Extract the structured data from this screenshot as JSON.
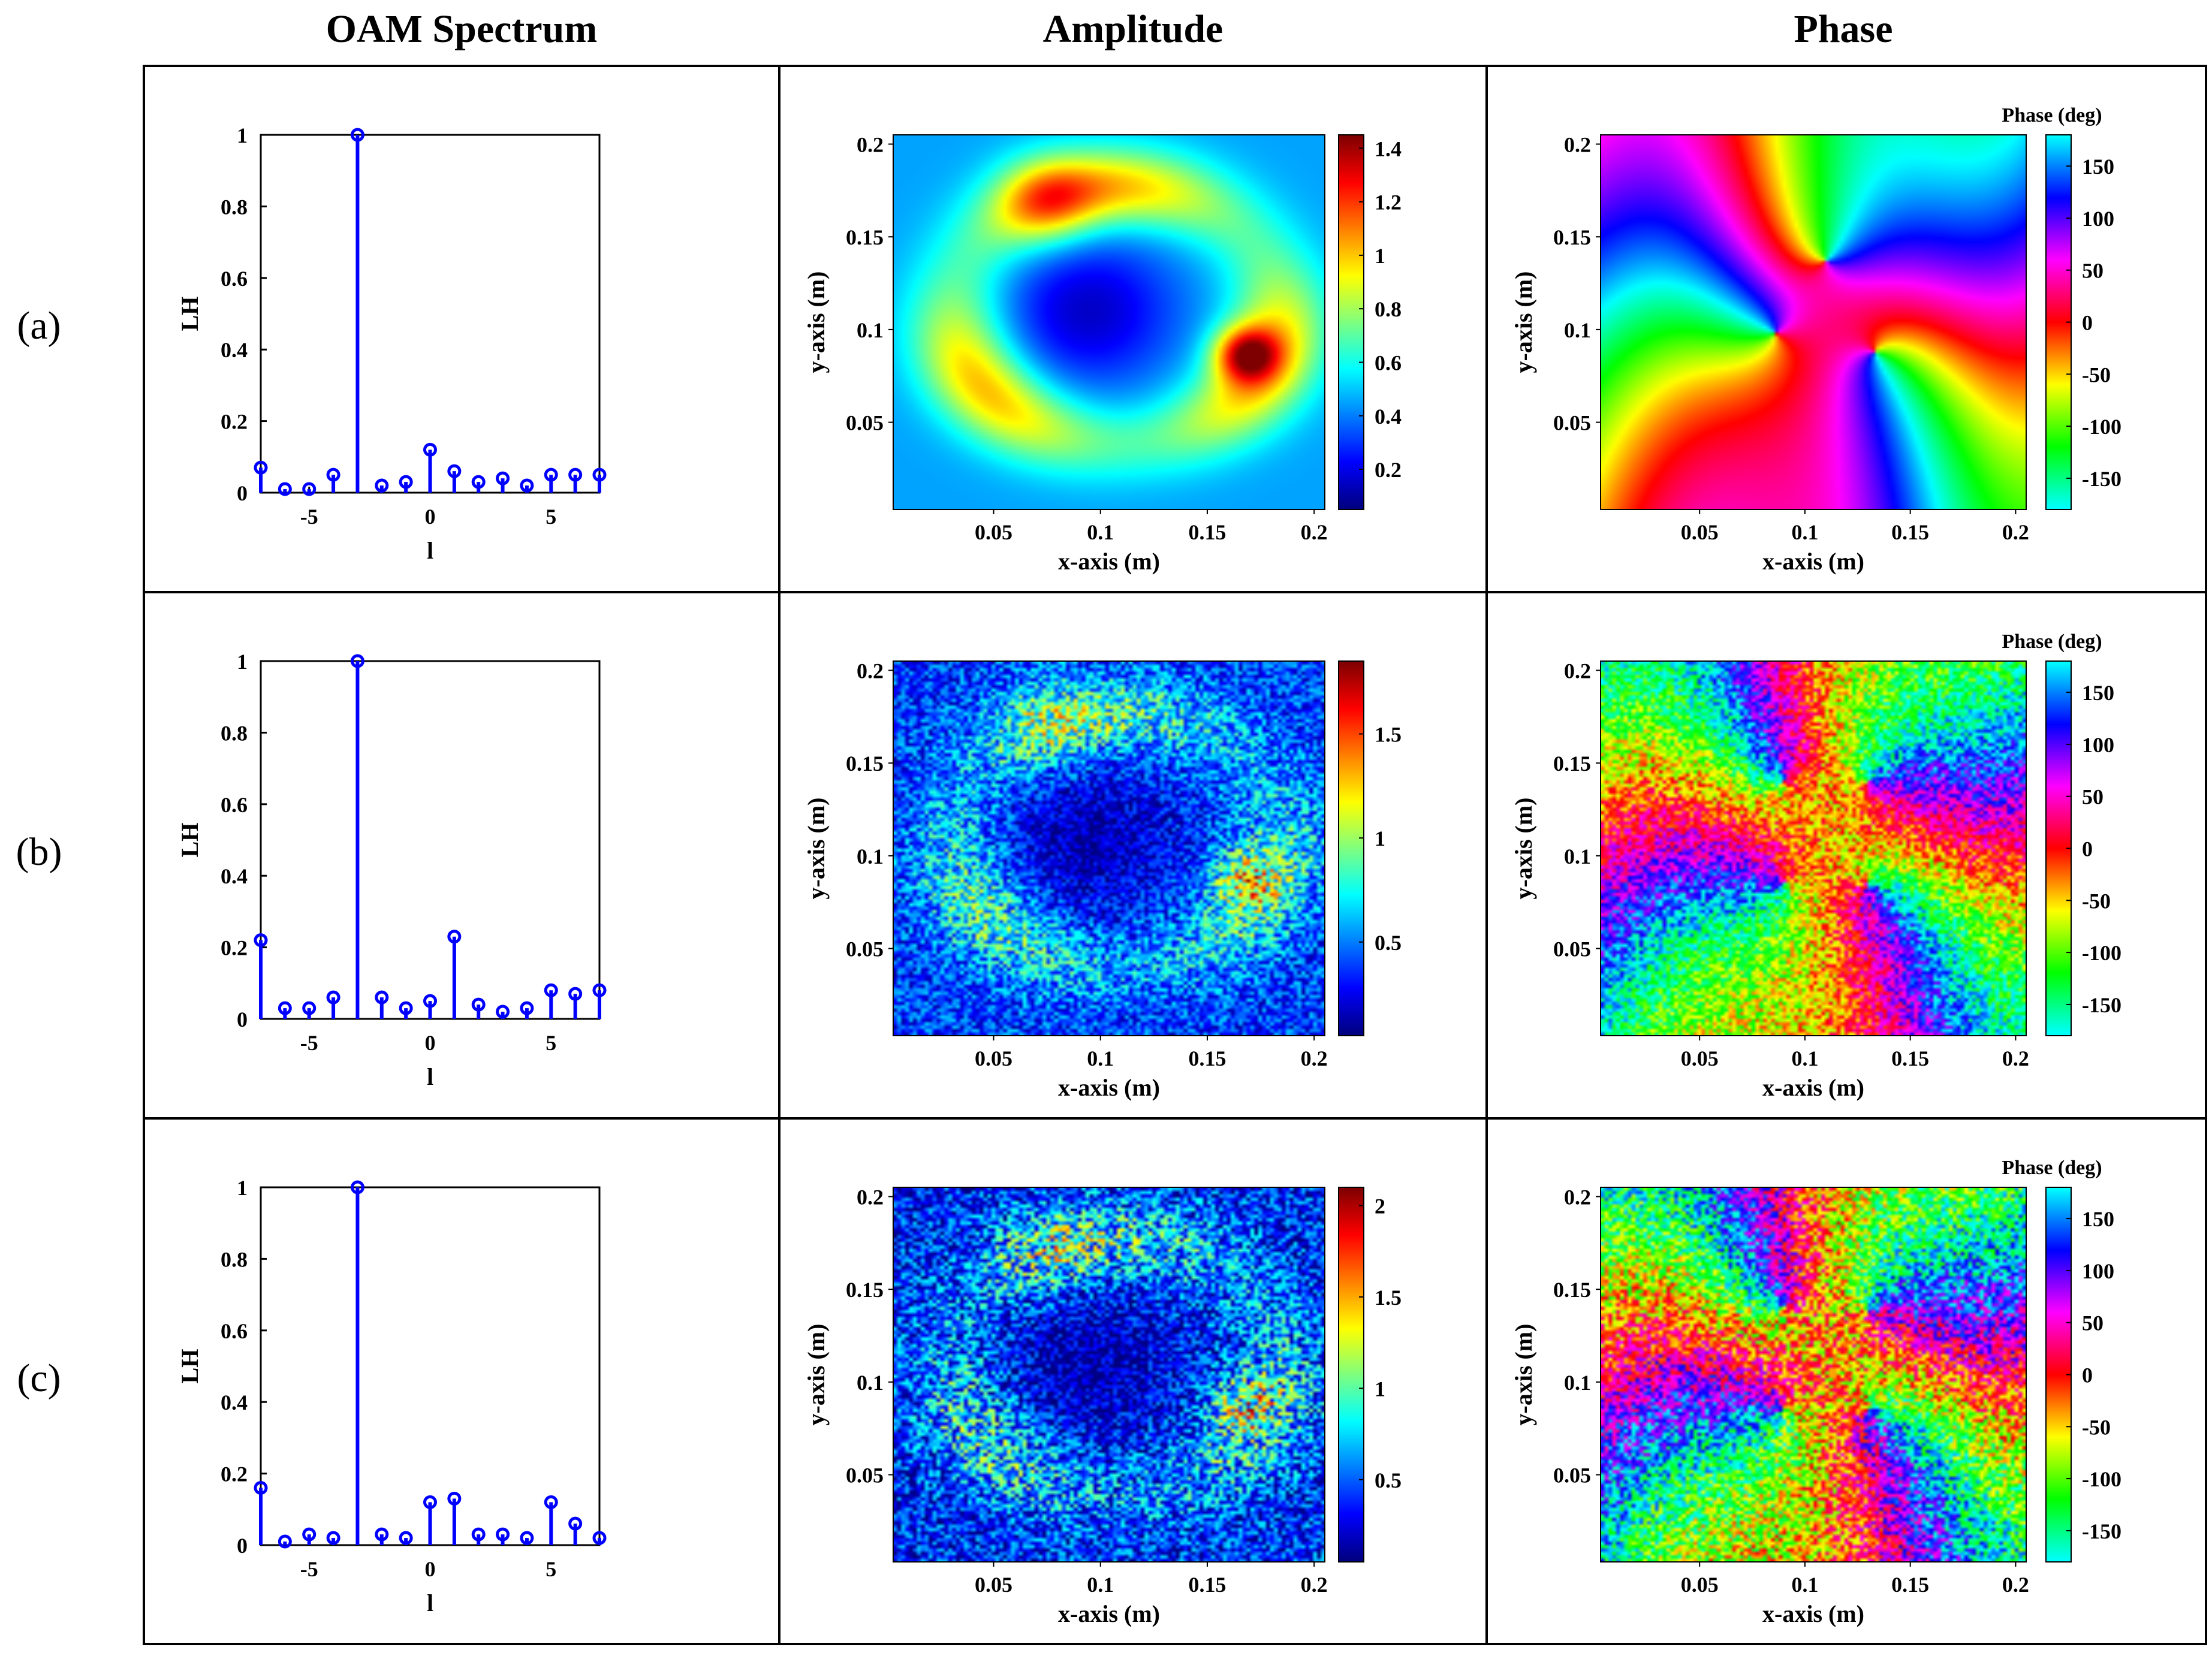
{
  "headers": {
    "spectrum": "OAM Spectrum",
    "amplitude": "Amplitude",
    "phase": "Phase"
  },
  "colors": {
    "stem": "#0000ff",
    "frame": "#000000"
  },
  "chart_data": [
    {
      "panel": "(a)",
      "spectrum": {
        "type": "stem",
        "x": [
          -7,
          -6,
          -5,
          -4,
          -3,
          -2,
          -1,
          0,
          1,
          2,
          3,
          4,
          5,
          6,
          7
        ],
        "values": [
          0.07,
          0.01,
          0.01,
          0.05,
          1.0,
          0.02,
          0.03,
          0.12,
          0.06,
          0.03,
          0.04,
          0.02,
          0.05,
          0.05,
          0.05
        ],
        "xlabel": "l",
        "ylabel": "LH",
        "xlim": [
          -7,
          7
        ],
        "ylim": [
          0,
          1
        ],
        "xticks": [
          "-5",
          "0",
          "5"
        ],
        "yticks": [
          "0",
          "0.2",
          "0.4",
          "0.6",
          "0.8",
          "1"
        ]
      },
      "amplitude": {
        "type": "heatmap",
        "xlabel": "x-axis (m)",
        "ylabel": "y-axis (m)",
        "xticks": [
          "0.05",
          "0.1",
          "0.15",
          "0.2"
        ],
        "yticks": [
          "0.05",
          "0.1",
          "0.15",
          "0.2"
        ],
        "colorbar_ticks": [
          "0.2",
          "0.4",
          "0.6",
          "0.8",
          "1",
          "1.2",
          "1.4"
        ],
        "colorbar_range": [
          0.05,
          1.45
        ],
        "noise": 0.0
      },
      "phase": {
        "type": "heatmap",
        "xlabel": "x-axis (m)",
        "ylabel": "y-axis (m)",
        "colorbar_title": "Phase (deg)",
        "xticks": [
          "0.05",
          "0.1",
          "0.15",
          "0.2"
        ],
        "yticks": [
          "0.05",
          "0.1",
          "0.15",
          "0.2"
        ],
        "colorbar_ticks": [
          "150",
          "100",
          "50",
          "0",
          "-50",
          "-100",
          "-150"
        ],
        "colorbar_range": [
          -180,
          180
        ],
        "noise": 0.0
      }
    },
    {
      "panel": "(b)",
      "spectrum": {
        "type": "stem",
        "x": [
          -7,
          -6,
          -5,
          -4,
          -3,
          -2,
          -1,
          0,
          1,
          2,
          3,
          4,
          5,
          6,
          7
        ],
        "values": [
          0.22,
          0.03,
          0.03,
          0.06,
          1.0,
          0.06,
          0.03,
          0.05,
          0.23,
          0.04,
          0.02,
          0.03,
          0.08,
          0.07,
          0.08
        ],
        "xlabel": "l",
        "ylabel": "LH",
        "xlim": [
          -7,
          7
        ],
        "ylim": [
          0,
          1
        ],
        "xticks": [
          "-5",
          "0",
          "5"
        ],
        "yticks": [
          "0",
          "0.2",
          "0.4",
          "0.6",
          "0.8",
          "1"
        ]
      },
      "amplitude": {
        "type": "heatmap",
        "xlabel": "x-axis (m)",
        "ylabel": "y-axis (m)",
        "xticks": [
          "0.05",
          "0.1",
          "0.15",
          "0.2"
        ],
        "yticks": [
          "0.05",
          "0.1",
          "0.15",
          "0.2"
        ],
        "colorbar_ticks": [
          "0.5",
          "1",
          "1.5"
        ],
        "colorbar_range": [
          0.05,
          1.85
        ],
        "noise": 0.35
      },
      "phase": {
        "type": "heatmap",
        "xlabel": "x-axis (m)",
        "ylabel": "y-axis (m)",
        "colorbar_title": "Phase (deg)",
        "xticks": [
          "0.05",
          "0.1",
          "0.15",
          "0.2"
        ],
        "yticks": [
          "0.05",
          "0.1",
          "0.15",
          "0.2"
        ],
        "colorbar_ticks": [
          "150",
          "100",
          "50",
          "0",
          "-50",
          "-100",
          "-150"
        ],
        "colorbar_range": [
          -180,
          180
        ],
        "noise": 0.6
      }
    },
    {
      "panel": "(c)",
      "spectrum": {
        "type": "stem",
        "x": [
          -7,
          -6,
          -5,
          -4,
          -3,
          -2,
          -1,
          0,
          1,
          2,
          3,
          4,
          5,
          6,
          7
        ],
        "values": [
          0.16,
          0.01,
          0.03,
          0.02,
          1.0,
          0.03,
          0.02,
          0.12,
          0.13,
          0.03,
          0.03,
          0.02,
          0.12,
          0.06,
          0.02
        ],
        "xlabel": "l",
        "ylabel": "LH",
        "xlim": [
          -7,
          7
        ],
        "ylim": [
          0,
          1
        ],
        "xticks": [
          "-5",
          "0",
          "5"
        ],
        "yticks": [
          "0",
          "0.2",
          "0.4",
          "0.6",
          "0.8",
          "1"
        ]
      },
      "amplitude": {
        "type": "heatmap",
        "xlabel": "x-axis (m)",
        "ylabel": "y-axis (m)",
        "xticks": [
          "0.05",
          "0.1",
          "0.15",
          "0.2"
        ],
        "yticks": [
          "0.05",
          "0.1",
          "0.15",
          "0.2"
        ],
        "colorbar_ticks": [
          "0.5",
          "1",
          "1.5",
          "2"
        ],
        "colorbar_range": [
          0.05,
          2.1
        ],
        "noise": 0.5
      },
      "phase": {
        "type": "heatmap",
        "xlabel": "x-axis (m)",
        "ylabel": "y-axis (m)",
        "colorbar_title": "Phase (deg)",
        "xticks": [
          "0.05",
          "0.1",
          "0.15",
          "0.2"
        ],
        "yticks": [
          "0.05",
          "0.1",
          "0.15",
          "0.2"
        ],
        "colorbar_ticks": [
          "150",
          "100",
          "50",
          "0",
          "-50",
          "-100",
          "-150"
        ],
        "colorbar_range": [
          -180,
          180
        ],
        "noise": 0.8
      }
    }
  ]
}
